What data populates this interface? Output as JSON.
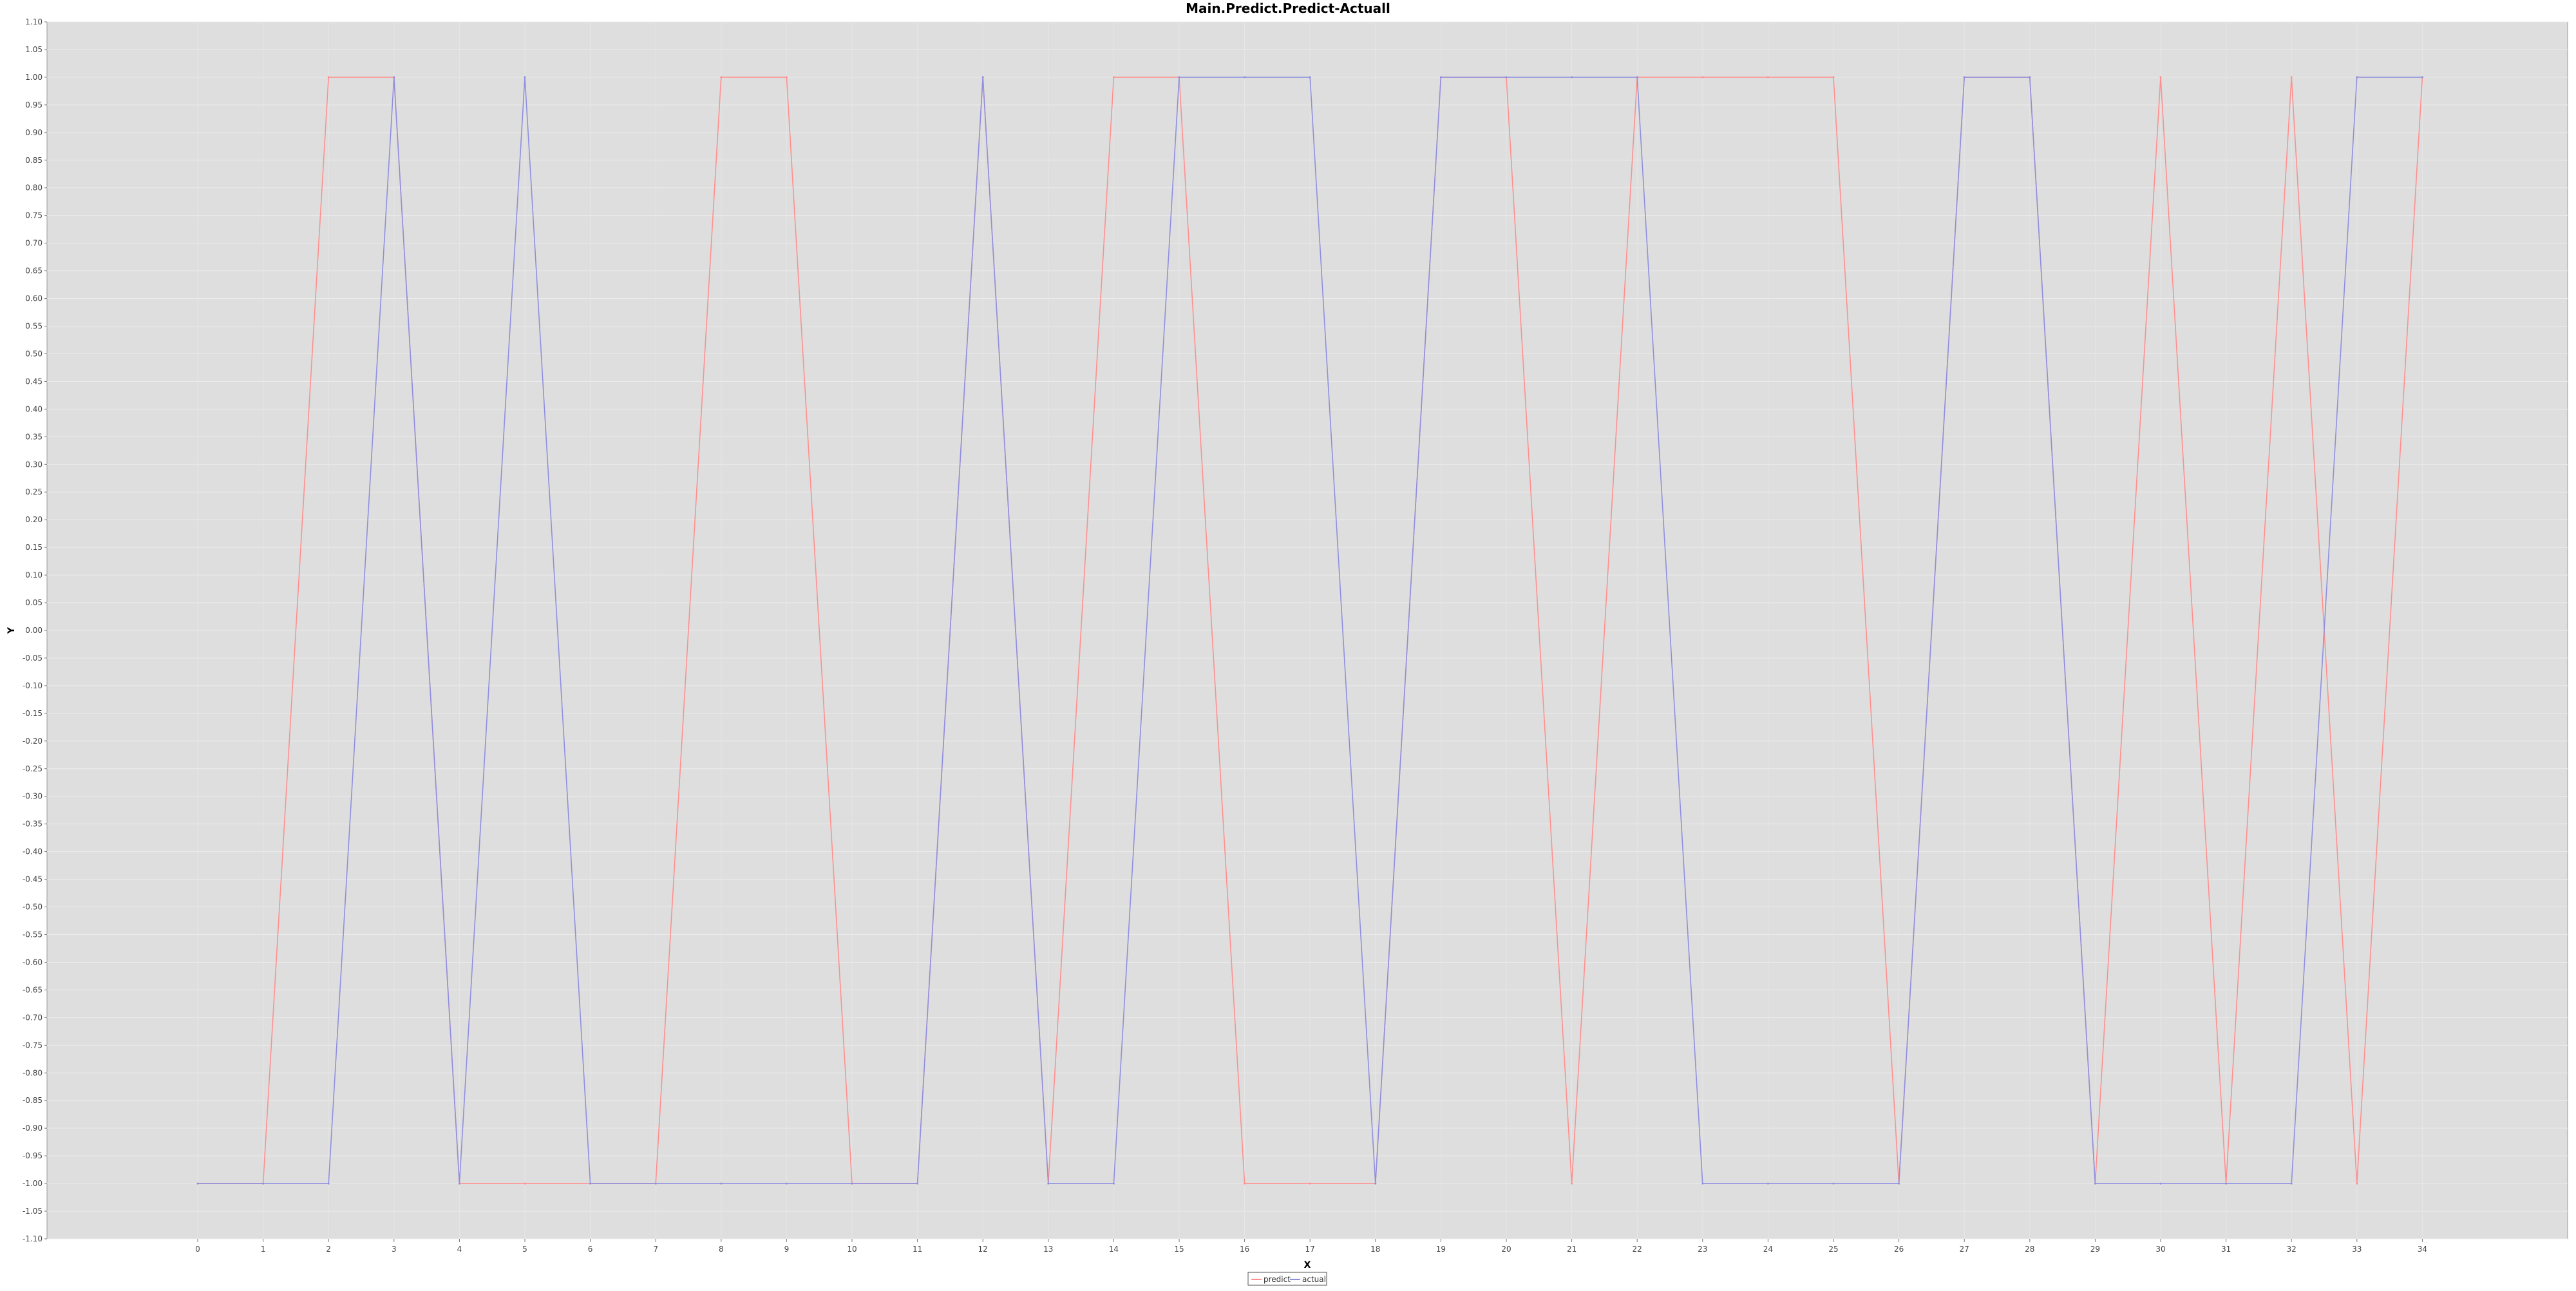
{
  "chart_data": {
    "type": "line",
    "title": "Main.Predict.Predict-Actuall",
    "xlabel": "X",
    "ylabel": "Y",
    "xlim": [
      0,
      34
    ],
    "ylim": [
      -1.1,
      1.1
    ],
    "y_tick_step": 0.05,
    "grid": true,
    "legend_position": "bottom-center",
    "background_color": "#dedede",
    "x": [
      0,
      1,
      2,
      3,
      4,
      5,
      6,
      7,
      8,
      9,
      10,
      11,
      12,
      13,
      14,
      15,
      16,
      17,
      18,
      19,
      20,
      21,
      22,
      23,
      24,
      25,
      26,
      27,
      28,
      29,
      30,
      31,
      32,
      33,
      34
    ],
    "series": [
      {
        "name": "predict",
        "color": "#ff8f8f",
        "values": [
          -1,
          -1,
          1,
          1,
          -1,
          -1,
          -1,
          -1,
          1,
          1,
          -1,
          -1,
          1,
          -1,
          1,
          1,
          -1,
          -1,
          -1,
          1,
          1,
          -1,
          1,
          1,
          1,
          1,
          -1,
          1,
          1,
          -1,
          1,
          -1,
          1,
          -1,
          1
        ]
      },
      {
        "name": "actual",
        "color": "#8f8fdf",
        "values": [
          -1,
          -1,
          -1,
          1,
          -1,
          1,
          -1,
          -1,
          -1,
          -1,
          -1,
          -1,
          1,
          -1,
          -1,
          1,
          1,
          1,
          -1,
          1,
          1,
          1,
          1,
          -1,
          -1,
          -1,
          -1,
          1,
          1,
          -1,
          -1,
          -1,
          -1,
          1,
          1
        ]
      }
    ]
  }
}
